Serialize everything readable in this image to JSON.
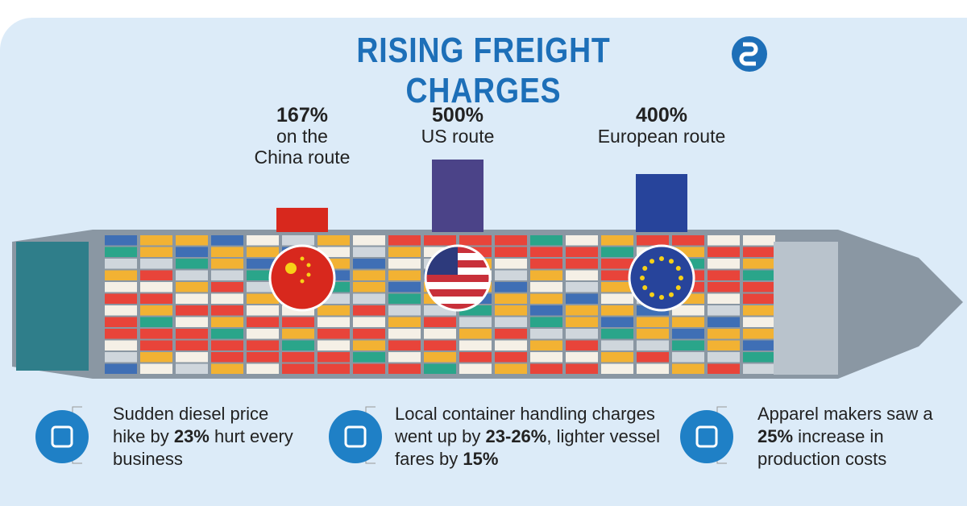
{
  "chart_data": {
    "type": "bar",
    "title": "RISING FREIGHT CHARGES",
    "categories": [
      "on the China route",
      "US route",
      "European route"
    ],
    "values": [
      167,
      500,
      400
    ],
    "value_labels": [
      "167%",
      "500%",
      "400%"
    ],
    "colors": [
      "#d8281d",
      "#4b4388",
      "#27449b"
    ],
    "annotations": [
      [
        "Sudden diesel price hike by ",
        "23%",
        " hurt every business"
      ],
      [
        "Local container handling charges went up by ",
        "23-26%",
        ", lighter vessel fares by ",
        "15%"
      ],
      [
        "Apparel makers saw a ",
        "25%",
        " increase in production costs"
      ]
    ]
  }
}
